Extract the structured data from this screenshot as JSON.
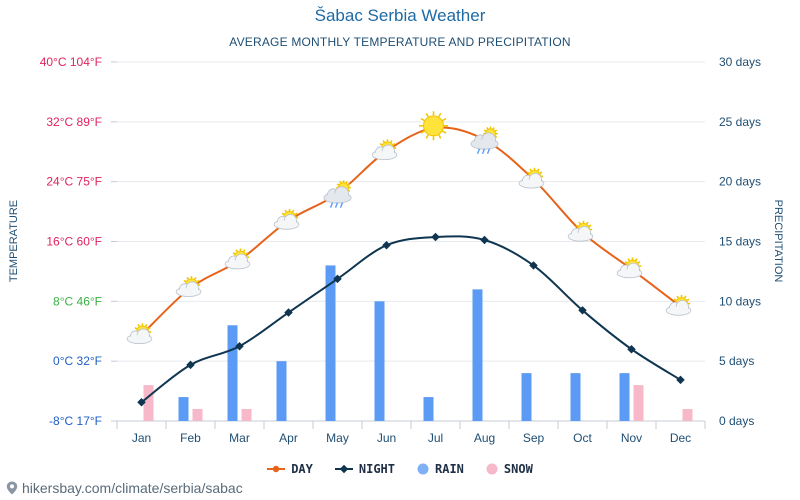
{
  "chart_data": {
    "type": "line+bar",
    "title": "Šabac Serbia Weather",
    "subtitle": "AVERAGE MONTHLY TEMPERATURE AND PRECIPITATION",
    "ylabel_left": "TEMPERATURE",
    "ylabel_right": "PRECIPITATION",
    "categories": [
      "Jan",
      "Feb",
      "Mar",
      "Apr",
      "May",
      "Jun",
      "Jul",
      "Aug",
      "Sep",
      "Oct",
      "Nov",
      "Dec"
    ],
    "temp_ylim": [
      -8,
      40
    ],
    "days_ylim": [
      0,
      30
    ],
    "temp_ticks": [
      {
        "value": 40,
        "label": "40°C 104°F",
        "color": "#e0245e"
      },
      {
        "value": 32,
        "label": "32°C 89°F",
        "color": "#e0245e"
      },
      {
        "value": 24,
        "label": "24°C 75°F",
        "color": "#e0245e"
      },
      {
        "value": 16,
        "label": "16°C 60°F",
        "color": "#e0245e"
      },
      {
        "value": 8,
        "label": "8°C 46°F",
        "color": "#3cb043"
      },
      {
        "value": 0,
        "label": "0°C 32°F",
        "color": "#1f5fc7"
      },
      {
        "value": -8,
        "label": "-8°C 17°F",
        "color": "#1f5fc7"
      }
    ],
    "days_ticks": [
      {
        "value": 30,
        "label": "30 days"
      },
      {
        "value": 25,
        "label": "25 days"
      },
      {
        "value": 20,
        "label": "20 days"
      },
      {
        "value": 15,
        "label": "15 days"
      },
      {
        "value": 10,
        "label": "10 days"
      },
      {
        "value": 5,
        "label": "5 days"
      },
      {
        "value": 0,
        "label": "0 days"
      }
    ],
    "series": [
      {
        "name": "DAY",
        "kind": "line",
        "axis": "temp",
        "color": "#e8631a",
        "values": [
          3.5,
          9.8,
          13.5,
          18.8,
          22.4,
          28.1,
          31.2,
          29.6,
          24.3,
          17.2,
          12.3,
          7.3
        ]
      },
      {
        "name": "NIGHT",
        "kind": "line",
        "axis": "temp",
        "color": "#0f3550",
        "values": [
          -5.5,
          -0.5,
          2.0,
          6.5,
          11.0,
          15.5,
          16.6,
          16.2,
          12.8,
          6.8,
          1.6,
          -2.5
        ]
      },
      {
        "name": "RAIN",
        "kind": "bar",
        "axis": "days",
        "color": "#5b9bf5",
        "values": [
          0,
          2,
          8,
          5,
          13,
          10,
          2,
          11,
          4,
          4,
          4,
          0
        ]
      },
      {
        "name": "SNOW",
        "kind": "bar",
        "axis": "days",
        "color": "#f7b8c9",
        "values": [
          3,
          1,
          1,
          0,
          0,
          0,
          0,
          0,
          0,
          0,
          3,
          1
        ]
      }
    ],
    "weather_icons": [
      "partly-cloudy",
      "partly-cloudy",
      "partly-cloudy",
      "partly-cloudy",
      "rain-cloud",
      "partly-cloudy",
      "sunny",
      "rain-cloud",
      "partly-cloudy",
      "partly-cloudy",
      "partly-cloudy",
      "partly-cloudy"
    ]
  },
  "legend": {
    "day": "DAY",
    "night": "NIGHT",
    "rain": "RAIN",
    "snow": "SNOW"
  },
  "footer": {
    "url": "hikersbay.com/climate/serbia/sabac"
  }
}
